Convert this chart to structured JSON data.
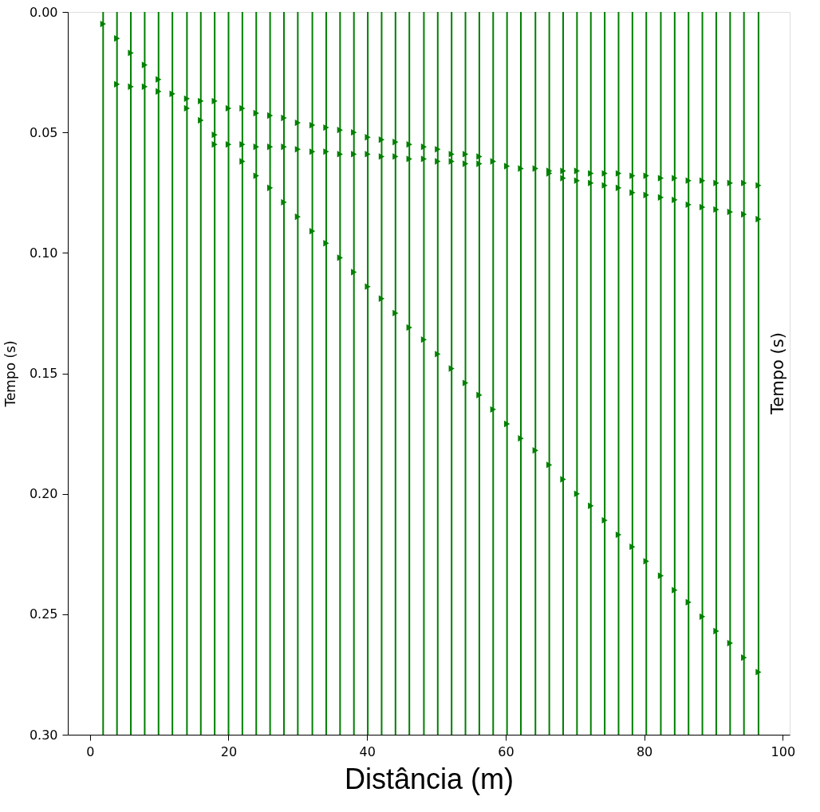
{
  "chart_data": {
    "type": "scatter",
    "xlabel": "Distância (m)",
    "ylabel": "Tempo (s)",
    "annotations": [
      "Tempo (s)"
    ],
    "x": [
      1.9,
      3.9,
      5.9,
      7.9,
      9.9,
      11.9,
      14.0,
      16.0,
      18.0,
      20.0,
      22.0,
      24.0,
      26.0,
      28.0,
      30.0,
      32.1,
      34.1,
      36.1,
      38.1,
      40.1,
      42.1,
      44.1,
      46.1,
      48.2,
      50.2,
      52.2,
      54.2,
      56.2,
      58.2,
      60.2,
      62.2,
      64.3,
      66.3,
      68.3,
      70.3,
      72.3,
      74.3,
      76.3,
      78.3,
      80.3,
      82.4,
      84.4,
      86.4,
      88.4,
      90.4,
      92.4,
      94.4,
      96.5
    ],
    "series": [
      {
        "color": "#008000",
        "values": [
          0.005,
          0.011,
          0.017,
          0.022,
          0.028,
          0.034,
          0.04,
          0.045,
          0.051,
          0.055,
          0.062,
          0.068,
          0.073,
          0.079,
          0.085,
          0.091,
          0.096,
          0.102,
          0.108,
          0.114,
          0.119,
          0.125,
          0.131,
          0.136,
          0.142,
          0.148,
          0.154,
          0.159,
          0.165,
          0.171,
          0.177,
          0.182,
          0.188,
          0.194,
          0.2,
          0.205,
          0.211,
          0.217,
          0.222,
          0.228,
          0.234,
          0.24,
          0.245,
          0.251,
          0.257,
          0.262,
          0.268,
          0.274
        ]
      },
      {
        "color": "#008000",
        "values": [
          null,
          0.03,
          0.031,
          0.031,
          0.033,
          null,
          0.036,
          0.037,
          0.037,
          0.04,
          0.04,
          0.042,
          0.043,
          0.044,
          0.046,
          0.047,
          0.048,
          0.049,
          0.05,
          0.052,
          0.053,
          0.054,
          0.055,
          0.056,
          0.057,
          0.059,
          0.059,
          0.06,
          0.062,
          0.064,
          0.065,
          0.065,
          0.066,
          0.066,
          0.066,
          0.067,
          0.067,
          0.067,
          0.068,
          0.068,
          0.069,
          0.069,
          0.07,
          0.07,
          0.071,
          0.071,
          0.071,
          0.072
        ]
      },
      {
        "color": "#008000",
        "values": [
          null,
          null,
          null,
          null,
          null,
          null,
          null,
          null,
          0.055,
          null,
          0.055,
          0.056,
          0.056,
          0.056,
          0.057,
          0.058,
          0.058,
          0.059,
          0.059,
          0.059,
          0.06,
          0.06,
          0.061,
          0.061,
          0.062,
          0.062,
          0.063,
          0.063,
          null,
          null,
          null,
          null,
          0.067,
          0.069,
          0.07,
          0.071,
          0.072,
          0.073,
          0.075,
          0.076,
          0.077,
          0.078,
          0.08,
          0.081,
          0.082,
          0.083,
          0.084,
          0.086
        ]
      }
    ],
    "ref_lines": [
      {
        "axis": "x",
        "value": 1.9,
        "color": "#008000"
      },
      {
        "axis": "x",
        "value": 3.9,
        "color": "#008000"
      },
      {
        "axis": "x",
        "value": 5.9,
        "color": "#008000"
      },
      {
        "axis": "x",
        "value": 7.9,
        "color": "#008000"
      },
      {
        "axis": "x",
        "value": 9.9,
        "color": "#008000"
      },
      {
        "axis": "x",
        "value": 11.9,
        "color": "#008000"
      },
      {
        "axis": "x",
        "value": 14.0,
        "color": "#008000"
      },
      {
        "axis": "x",
        "value": 16.0,
        "color": "#008000"
      },
      {
        "axis": "x",
        "value": 18.0,
        "color": "#008000"
      },
      {
        "axis": "x",
        "value": 20.0,
        "color": "#008000"
      },
      {
        "axis": "x",
        "value": 22.0,
        "color": "#008000"
      },
      {
        "axis": "x",
        "value": 24.0,
        "color": "#008000"
      },
      {
        "axis": "x",
        "value": 26.0,
        "color": "#008000"
      },
      {
        "axis": "x",
        "value": 28.0,
        "color": "#008000"
      },
      {
        "axis": "x",
        "value": 30.0,
        "color": "#008000"
      },
      {
        "axis": "x",
        "value": 32.1,
        "color": "#008000"
      },
      {
        "axis": "x",
        "value": 34.1,
        "color": "#008000"
      },
      {
        "axis": "x",
        "value": 36.1,
        "color": "#008000"
      },
      {
        "axis": "x",
        "value": 38.1,
        "color": "#008000"
      },
      {
        "axis": "x",
        "value": 40.1,
        "color": "#008000"
      },
      {
        "axis": "x",
        "value": 42.1,
        "color": "#008000"
      },
      {
        "axis": "x",
        "value": 44.1,
        "color": "#008000"
      },
      {
        "axis": "x",
        "value": 46.1,
        "color": "#008000"
      },
      {
        "axis": "x",
        "value": 48.2,
        "color": "#008000"
      },
      {
        "axis": "x",
        "value": 50.2,
        "color": "#008000"
      },
      {
        "axis": "x",
        "value": 52.2,
        "color": "#008000"
      },
      {
        "axis": "x",
        "value": 54.2,
        "color": "#008000"
      },
      {
        "axis": "x",
        "value": 56.2,
        "color": "#008000"
      },
      {
        "axis": "x",
        "value": 58.2,
        "color": "#008000"
      },
      {
        "axis": "x",
        "value": 60.2,
        "color": "#008000"
      },
      {
        "axis": "x",
        "value": 62.2,
        "color": "#008000"
      },
      {
        "axis": "x",
        "value": 64.3,
        "color": "#008000"
      },
      {
        "axis": "x",
        "value": 66.3,
        "color": "#008000"
      },
      {
        "axis": "x",
        "value": 68.3,
        "color": "#008000"
      },
      {
        "axis": "x",
        "value": 70.3,
        "color": "#008000"
      },
      {
        "axis": "x",
        "value": 72.3,
        "color": "#008000"
      },
      {
        "axis": "x",
        "value": 74.3,
        "color": "#008000"
      },
      {
        "axis": "x",
        "value": 76.3,
        "color": "#008000"
      },
      {
        "axis": "x",
        "value": 78.3,
        "color": "#008000"
      },
      {
        "axis": "x",
        "value": 80.3,
        "color": "#008000"
      },
      {
        "axis": "x",
        "value": 82.4,
        "color": "#008000"
      },
      {
        "axis": "x",
        "value": 84.4,
        "color": "#008000"
      },
      {
        "axis": "x",
        "value": 86.4,
        "color": "#008000"
      },
      {
        "axis": "x",
        "value": 88.4,
        "color": "#008000"
      },
      {
        "axis": "x",
        "value": 90.4,
        "color": "#008000"
      },
      {
        "axis": "x",
        "value": 92.4,
        "color": "#008000"
      },
      {
        "axis": "x",
        "value": 94.4,
        "color": "#008000"
      },
      {
        "axis": "x",
        "value": 96.5,
        "color": "#008000"
      }
    ],
    "xlim": [
      -3.2,
      101
    ],
    "xticks": [
      0,
      20,
      40,
      60,
      80,
      100
    ],
    "ylim": [
      0.3,
      0
    ],
    "yticks": [
      {
        "value": 0,
        "label": "0.00"
      },
      0.05,
      {
        "value": 0.1,
        "label": "0.10"
      },
      0.15,
      {
        "value": 0.2,
        "label": "0.20"
      },
      0.25,
      {
        "value": 0.3,
        "label": "0.30"
      }
    ],
    "grid": false,
    "marker": "triangle"
  }
}
